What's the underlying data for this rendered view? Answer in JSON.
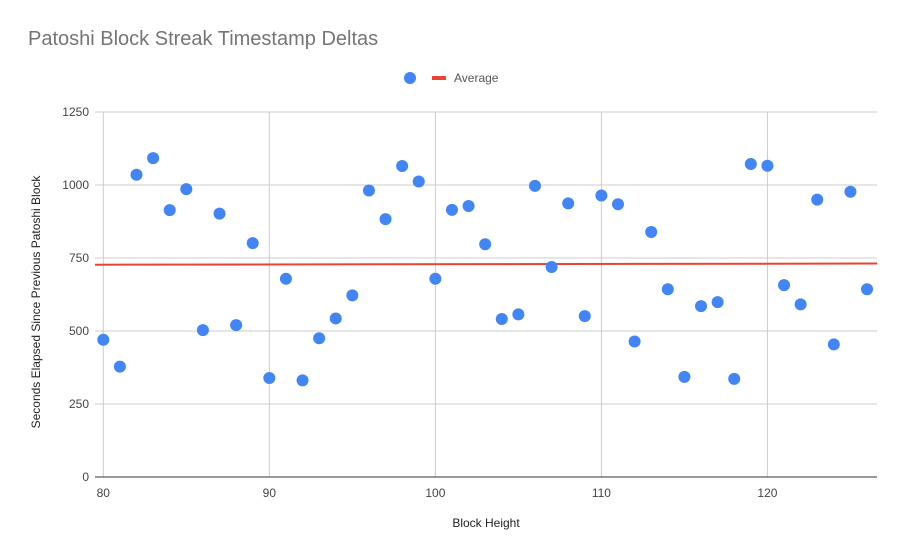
{
  "chart_data": {
    "type": "scatter",
    "title": "Patoshi Block Streak Timestamp Deltas",
    "xlabel": "Block Height",
    "ylabel": "Seconds Elapsed Since Previous Patoshi Block",
    "xlim": [
      79.5,
      126.6
    ],
    "ylim": [
      0,
      1250
    ],
    "xticks": [
      80,
      90,
      100,
      110,
      120
    ],
    "yticks": [
      0,
      250,
      500,
      750,
      1000,
      1250
    ],
    "grid": true,
    "legend_position": "top-center",
    "colors": {
      "points": "#4285f4",
      "average": "#ea4335",
      "grid": "#cccccc",
      "axis": "#333333"
    },
    "series": [
      {
        "name": "",
        "kind": "points",
        "x": [
          80,
          81,
          82,
          83,
          84,
          85,
          86,
          87,
          88,
          89,
          90,
          91,
          92,
          93,
          94,
          95,
          96,
          97,
          98,
          99,
          100,
          101,
          102,
          103,
          104,
          105,
          106,
          107,
          108,
          109,
          110,
          111,
          112,
          113,
          114,
          115,
          116,
          117,
          118,
          119,
          120,
          121,
          122,
          123,
          124,
          125,
          126
        ],
        "values": [
          470,
          378,
          1035,
          1092,
          914,
          986,
          503,
          902,
          520,
          801,
          339,
          679,
          331,
          475,
          543,
          622,
          981,
          883,
          1065,
          1012,
          679,
          915,
          928,
          797,
          541,
          557,
          997,
          719,
          937,
          551,
          964,
          934,
          464,
          839,
          643,
          343,
          585,
          599,
          336,
          1072,
          1066,
          657,
          591,
          950,
          454,
          977,
          643
        ]
      },
      {
        "name": "Average",
        "kind": "line",
        "x": [
          79.5,
          126.6
        ],
        "values": [
          727,
          731
        ]
      }
    ]
  }
}
